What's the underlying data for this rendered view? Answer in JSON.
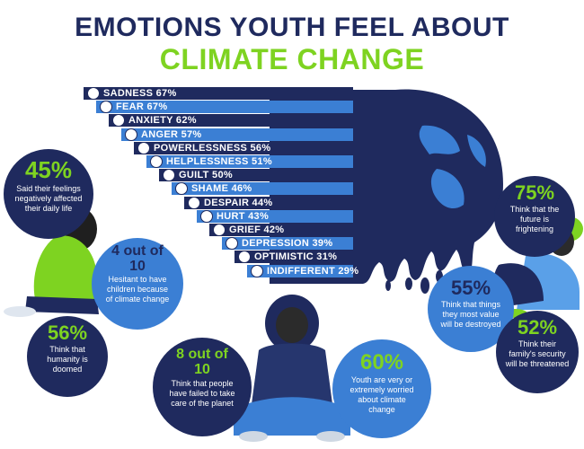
{
  "title": {
    "line1": "EMOTIONS YOUTH FEEL ABOUT",
    "line2": "CLIMATE CHANGE"
  },
  "colors": {
    "navy": "#1f2a5e",
    "blue": "#3b7fd4",
    "light_blue": "#5aa0e8",
    "green": "#7ed321"
  },
  "chart_data": {
    "type": "bar",
    "categories": [
      "SADNESS",
      "FEAR",
      "ANXIETY",
      "ANGER",
      "POWERLESSNESS",
      "HELPLESSNESS",
      "GUILT",
      "SHAME",
      "DESPAIR",
      "HURT",
      "GRIEF",
      "DEPRESSION",
      "OPTIMISTIC",
      "INDIFFERENT"
    ],
    "values": [
      67,
      67,
      62,
      57,
      56,
      51,
      50,
      46,
      44,
      43,
      42,
      39,
      31,
      29
    ],
    "labels": [
      "SADNESS 67%",
      "FEAR 67%",
      "ANXIETY 62%",
      "ANGER 57%",
      "POWERLESSNESS 56%",
      "HELPLESSNESS 51%",
      "GUILT 50%",
      "SHAME 46%",
      "DESPAIR 44%",
      "HURT 43%",
      "GRIEF 42%",
      "DEPRESSION 39%",
      "OPTIMISTIC 31%",
      "INDIFFERENT 29%"
    ]
  },
  "stats": {
    "s45": {
      "value": "45%",
      "text": "Said their feelings negatively affected their daily life"
    },
    "s4of10": {
      "value": "4 out of 10",
      "text": "Hesitant to have children because of climate change"
    },
    "s56": {
      "value": "56%",
      "text": "Think that humanity is doomed"
    },
    "s8of10": {
      "value": "8 out of 10",
      "text": "Think that people have failed to take care of the planet"
    },
    "s60": {
      "value": "60%",
      "text": "Youth are very or extremely worried about climate change"
    },
    "s75": {
      "value": "75%",
      "text": "Think that the future is frightening"
    },
    "s55": {
      "value": "55%",
      "text": "Think that things they most value will be destroyed"
    },
    "s52": {
      "value": "52%",
      "text": "Think their family's security will be threatened"
    }
  }
}
